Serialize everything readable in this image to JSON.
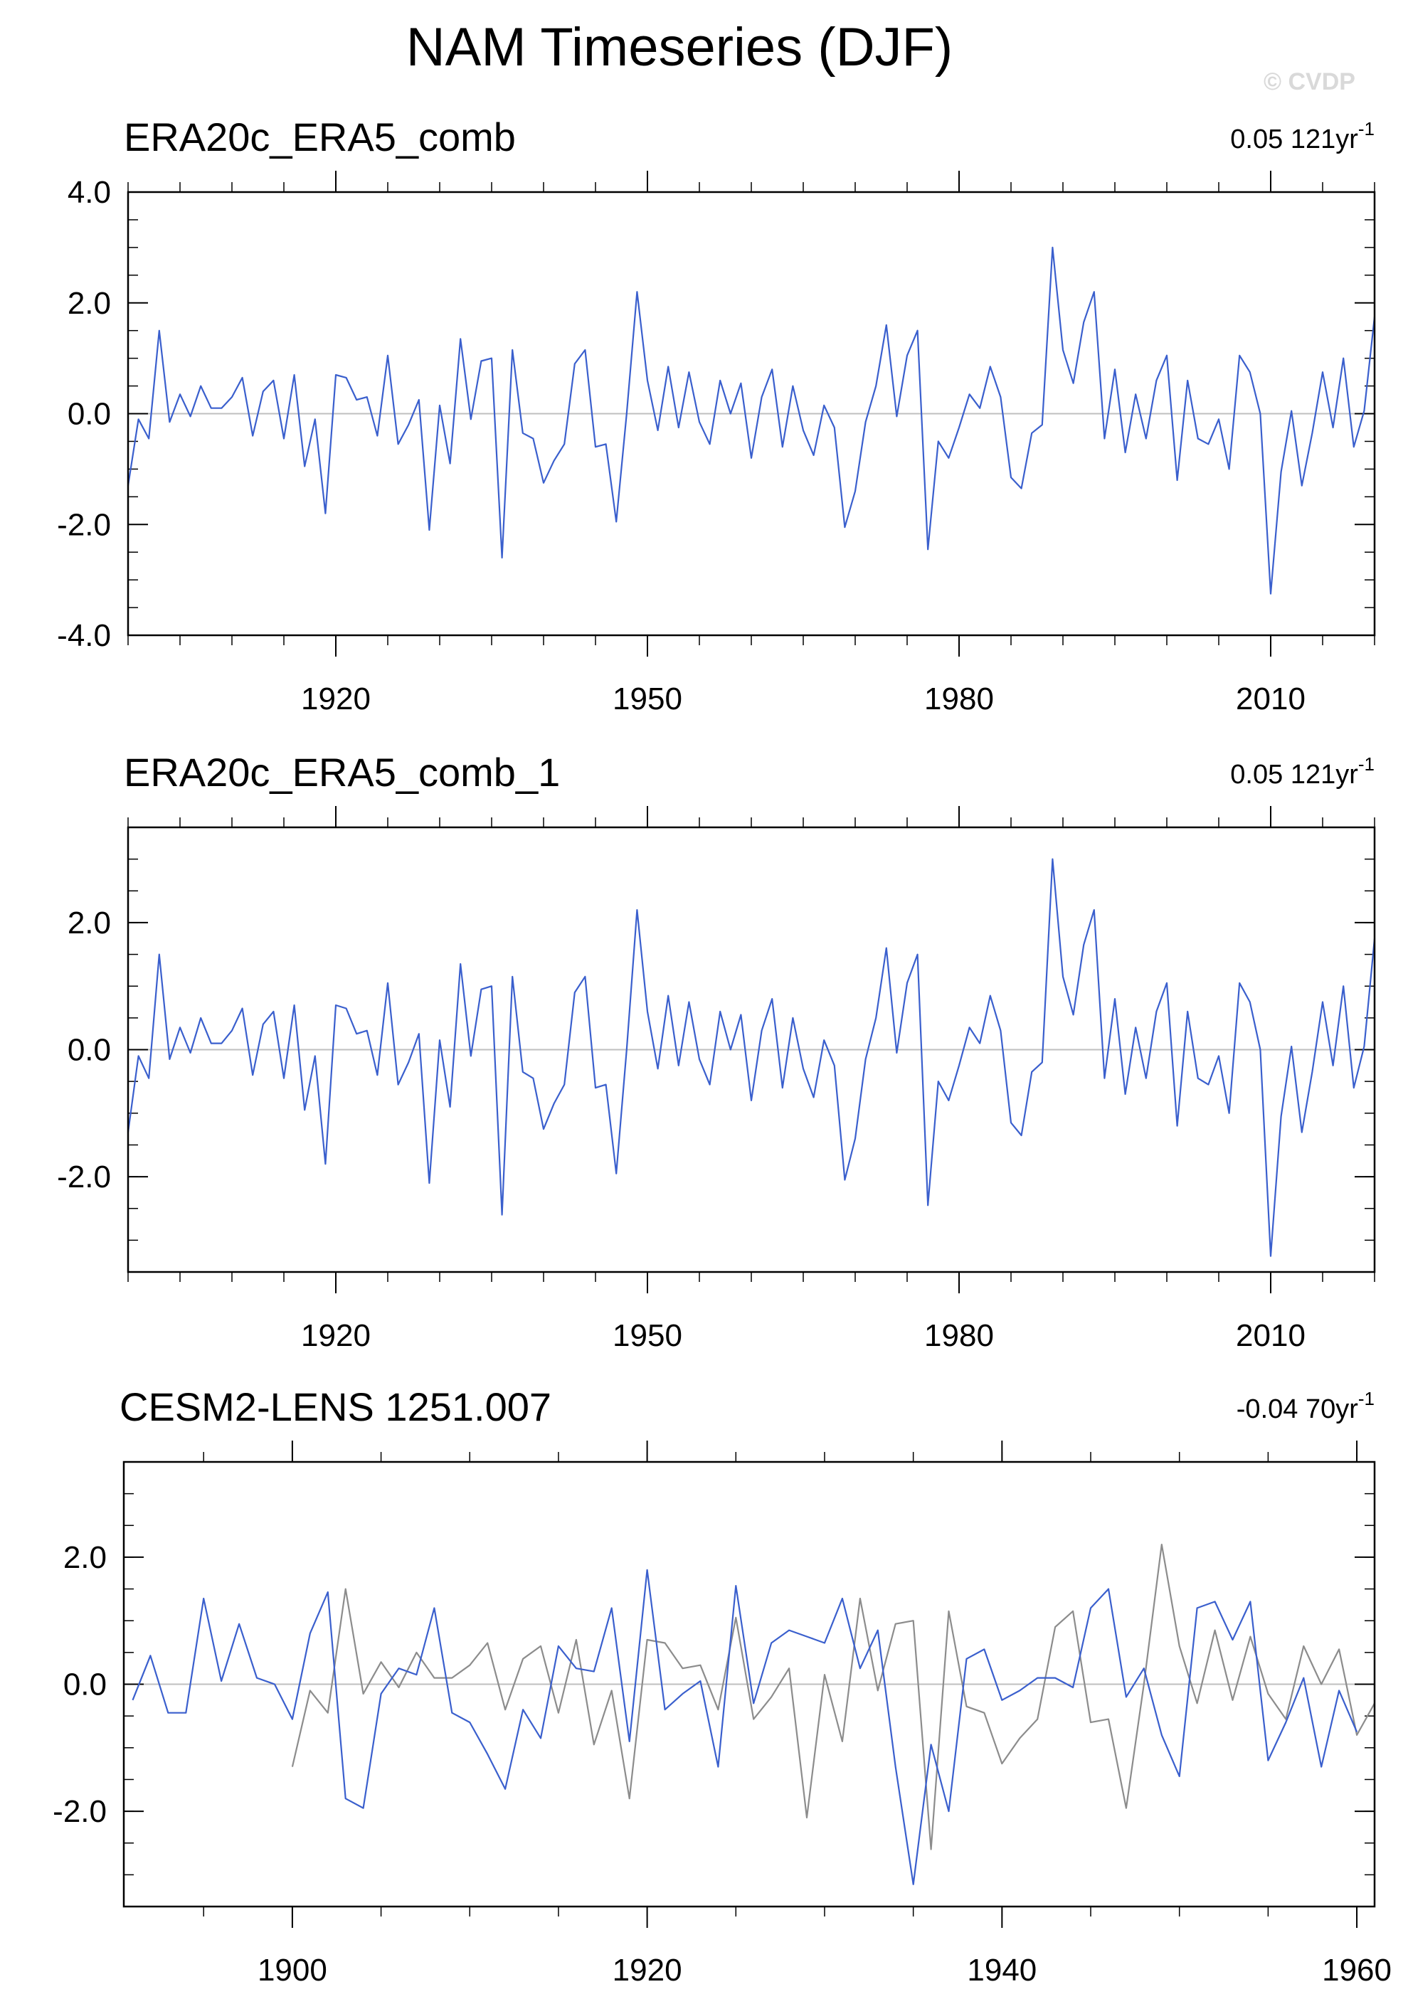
{
  "title": "NAM Timeseries (DJF)",
  "watermark": "© CVDP",
  "colors": {
    "observed": "#3a5fcd",
    "model": "#8c8c8c",
    "zero_line": "#bfbfbf",
    "frame": "#000000"
  },
  "chart_data": [
    {
      "type": "line",
      "title": "ERA20c_ERA5_comb",
      "trend_value": "0.05 121yr",
      "trend_exp": "-1",
      "xlabel": "",
      "ylabel": "",
      "xlim": [
        1900,
        2020
      ],
      "ylim": [
        -4.0,
        4.0
      ],
      "xticks": [
        1920,
        1950,
        1980,
        2010
      ],
      "xtick_labels": [
        "1920",
        "1950",
        "1980",
        "2010"
      ],
      "yticks": [
        -4,
        -2,
        0,
        2,
        4
      ],
      "ytick_labels": [
        "-4.0",
        "-2.0",
        "0.0",
        "2.0",
        "4.0"
      ],
      "grid": false,
      "series": [
        {
          "x_start": 1900,
          "values": [
            -1.3,
            -0.1,
            -0.45,
            1.5,
            -0.15,
            0.35,
            -0.05,
            0.5,
            0.1,
            0.1,
            0.3,
            0.65,
            -0.4,
            0.4,
            0.6,
            -0.45,
            0.7,
            -0.95,
            -0.1,
            -1.8,
            0.7,
            0.65,
            0.25,
            0.3,
            -0.4,
            1.05,
            -0.55,
            -0.2,
            0.25,
            -2.1,
            0.15,
            -0.9,
            1.35,
            -0.1,
            0.95,
            1.0,
            -2.6,
            1.15,
            -0.35,
            -0.45,
            -1.25,
            -0.85,
            -0.55,
            0.9,
            1.15,
            -0.6,
            -0.55,
            -1.95,
            0.0,
            2.2,
            0.6,
            -0.3,
            0.85,
            -0.25,
            0.75,
            -0.15,
            -0.55,
            0.6,
            0.0,
            0.55,
            -0.8,
            0.3,
            0.8,
            -0.6,
            0.5,
            -0.3,
            -0.75,
            0.15,
            -0.25,
            -2.05,
            -1.4,
            -0.15,
            0.5,
            1.6,
            -0.05,
            1.05,
            1.5,
            -2.45,
            -0.5,
            -0.8,
            -0.25,
            0.35,
            0.1,
            0.85,
            0.3,
            -1.15,
            -1.35,
            -0.35,
            -0.2,
            3.0,
            1.15,
            0.55,
            1.65,
            2.2,
            -0.45,
            0.8,
            -0.7,
            0.35,
            -0.45,
            0.6,
            1.05,
            -1.2,
            0.6,
            -0.45,
            -0.55,
            -0.1,
            -1.0,
            1.05,
            0.75,
            0.0,
            -3.25,
            -1.05,
            0.05,
            -1.3,
            -0.35,
            0.75,
            -0.25,
            1.0,
            -0.6,
            0.05,
            1.75
          ]
        }
      ]
    },
    {
      "type": "line",
      "title": "ERA20c_ERA5_comb_1",
      "trend_value": "0.05 121yr",
      "trend_exp": "-1",
      "xlabel": "",
      "ylabel": "",
      "xlim": [
        1900,
        2020
      ],
      "ylim": [
        -3.5,
        3.5
      ],
      "xticks": [
        1920,
        1950,
        1980,
        2010
      ],
      "xtick_labels": [
        "1920",
        "1950",
        "1980",
        "2010"
      ],
      "yticks": [
        -2,
        0,
        2
      ],
      "ytick_labels": [
        "-2.0",
        "0.0",
        "2.0"
      ],
      "grid": false,
      "series": [
        {
          "x_start": 1900,
          "values": [
            -1.3,
            -0.1,
            -0.45,
            1.5,
            -0.15,
            0.35,
            -0.05,
            0.5,
            0.1,
            0.1,
            0.3,
            0.65,
            -0.4,
            0.4,
            0.6,
            -0.45,
            0.7,
            -0.95,
            -0.1,
            -1.8,
            0.7,
            0.65,
            0.25,
            0.3,
            -0.4,
            1.05,
            -0.55,
            -0.2,
            0.25,
            -2.1,
            0.15,
            -0.9,
            1.35,
            -0.1,
            0.95,
            1.0,
            -2.6,
            1.15,
            -0.35,
            -0.45,
            -1.25,
            -0.85,
            -0.55,
            0.9,
            1.15,
            -0.6,
            -0.55,
            -1.95,
            0.0,
            2.2,
            0.6,
            -0.3,
            0.85,
            -0.25,
            0.75,
            -0.15,
            -0.55,
            0.6,
            0.0,
            0.55,
            -0.8,
            0.3,
            0.8,
            -0.6,
            0.5,
            -0.3,
            -0.75,
            0.15,
            -0.25,
            -2.05,
            -1.4,
            -0.15,
            0.5,
            1.6,
            -0.05,
            1.05,
            1.5,
            -2.45,
            -0.5,
            -0.8,
            -0.25,
            0.35,
            0.1,
            0.85,
            0.3,
            -1.15,
            -1.35,
            -0.35,
            -0.2,
            3.0,
            1.15,
            0.55,
            1.65,
            2.2,
            -0.45,
            0.8,
            -0.7,
            0.35,
            -0.45,
            0.6,
            1.05,
            -1.2,
            0.6,
            -0.45,
            -0.55,
            -0.1,
            -1.0,
            1.05,
            0.75,
            0.0,
            -3.25,
            -1.05,
            0.05,
            -1.3,
            -0.35,
            0.75,
            -0.25,
            1.0,
            -0.6,
            0.05,
            1.75
          ]
        }
      ]
    },
    {
      "type": "line",
      "title": "CESM2-LENS 1251.007",
      "trend_value": "-0.04 70yr",
      "trend_exp": "-1",
      "xlabel": "",
      "ylabel": "",
      "xlim": [
        1890.5,
        1961
      ],
      "ylim": [
        -3.5,
        3.5
      ],
      "xticks": [
        1900,
        1920,
        1940,
        1960
      ],
      "xtick_labels": [
        "1900",
        "1920",
        "1940",
        "1960"
      ],
      "yticks": [
        -2,
        0,
        2
      ],
      "ytick_labels": [
        "-2.0",
        "0.0",
        "2.0"
      ],
      "grid": false,
      "series": [
        {
          "x_start": 1891,
          "color_key": "observed",
          "values": [
            -0.25,
            0.45,
            -0.45,
            -0.45,
            1.35,
            0.05,
            0.95,
            0.1,
            0.0,
            -0.55,
            0.8,
            1.45,
            -1.8,
            -1.95,
            -0.15,
            0.25,
            0.15,
            1.2,
            -0.45,
            -0.6,
            -1.1,
            -1.65,
            -0.4,
            -0.85,
            0.6,
            0.25,
            0.2,
            1.2,
            -0.9,
            1.8,
            -0.4,
            -0.15,
            0.05,
            -1.3,
            1.55,
            -0.3,
            0.65,
            0.85,
            0.75,
            0.65,
            1.35,
            0.25,
            0.85,
            -1.3,
            -3.15,
            -0.95,
            -2.0,
            0.4,
            0.55,
            -0.25,
            -0.1,
            0.1,
            0.1,
            -0.05,
            1.2,
            1.5,
            -0.2,
            0.25,
            -0.8,
            -1.45,
            1.2,
            1.3,
            0.7,
            1.3,
            -1.2,
            -0.6,
            0.1,
            -1.3,
            -0.1,
            -0.75
          ]
        },
        {
          "x_start": 1900,
          "color_key": "model",
          "values": [
            -1.3,
            -0.1,
            -0.45,
            1.5,
            -0.15,
            0.35,
            -0.05,
            0.5,
            0.1,
            0.1,
            0.3,
            0.65,
            -0.4,
            0.4,
            0.6,
            -0.45,
            0.7,
            -0.95,
            -0.1,
            -1.8,
            0.7,
            0.65,
            0.25,
            0.3,
            -0.4,
            1.05,
            -0.55,
            -0.2,
            0.25,
            -2.1,
            0.15,
            -0.9,
            1.35,
            -0.1,
            0.95,
            1.0,
            -2.6,
            1.15,
            -0.35,
            -0.45,
            -1.25,
            -0.85,
            -0.55,
            0.9,
            1.15,
            -0.6,
            -0.55,
            -1.95,
            0.0,
            2.2,
            0.6,
            -0.3,
            0.85,
            -0.25,
            0.75,
            -0.15,
            -0.55,
            0.6,
            0.0,
            0.55,
            -0.8,
            -0.3
          ]
        }
      ]
    }
  ]
}
